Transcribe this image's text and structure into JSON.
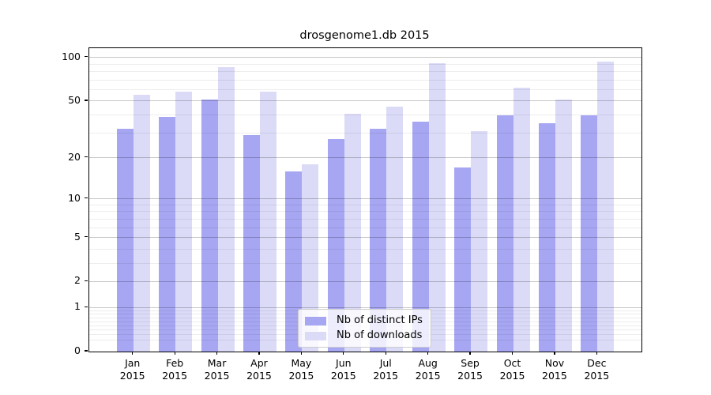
{
  "chart_data": {
    "type": "bar",
    "title": "drosgenome1.db 2015",
    "year": "2015",
    "categories": [
      "Jan",
      "Feb",
      "Mar",
      "Apr",
      "May",
      "Jun",
      "Jul",
      "Aug",
      "Sep",
      "Oct",
      "Nov",
      "Dec"
    ],
    "series": [
      {
        "name": "Nb of distinct IPs",
        "color": "#a6a6f2",
        "values": [
          32,
          39,
          51,
          29,
          16,
          27,
          32,
          36,
          17,
          40,
          35,
          40
        ]
      },
      {
        "name": "Nb of downloads",
        "color": "#dbdbf8",
        "values": [
          55,
          58,
          86,
          58,
          18,
          41,
          46,
          91,
          31,
          62,
          51,
          94
        ]
      }
    ],
    "yscale": "log1p",
    "yticks_major": [
      0,
      1,
      2,
      5,
      10,
      20,
      50,
      100
    ],
    "yticks_minor": [
      0.2,
      0.3,
      0.4,
      0.5,
      0.6,
      0.7,
      0.8,
      0.9,
      3,
      4,
      6,
      7,
      8,
      9,
      30,
      40,
      60,
      70,
      80,
      90
    ],
    "ylim": [
      0,
      116
    ],
    "grid": true,
    "legend_position": "lower center"
  },
  "colors": {
    "bar_distinct_ips": "#a6a6f2",
    "bar_downloads": "#dbdbf8",
    "spine": "#000000",
    "grid_major": "rgba(0,0,0,0.22)",
    "grid_minor": "rgba(0,0,0,0.07)",
    "legend_border": "#cccccc",
    "legend_background": "rgba(255,255,255,0.8)"
  }
}
